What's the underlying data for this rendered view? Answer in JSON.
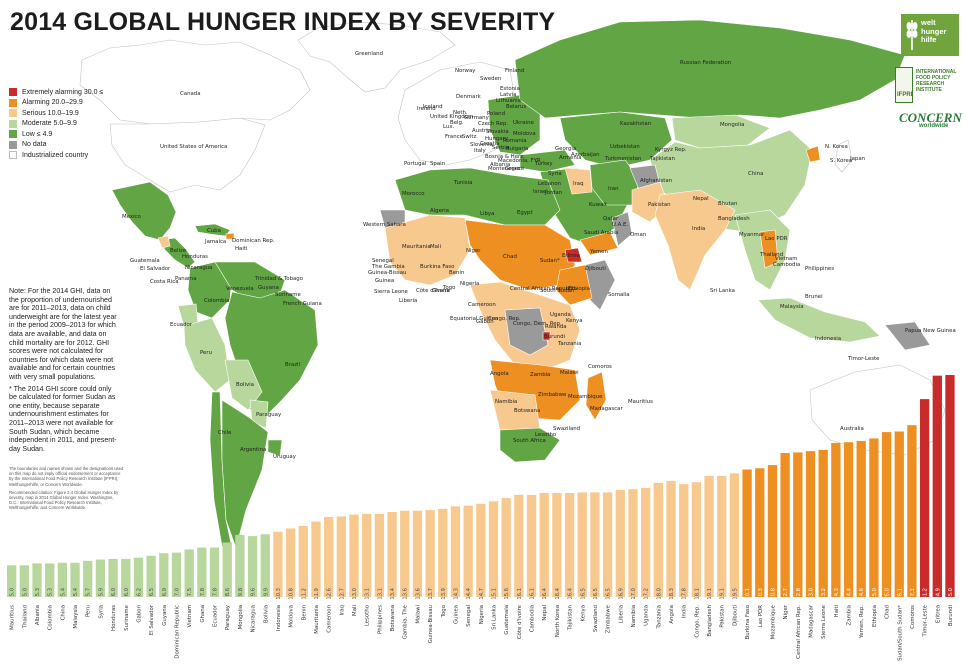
{
  "title": "2014 GLOBAL HUNGER INDEX BY SEVERITY",
  "colors": {
    "extremely_alarming": "#c92a2a",
    "alarming": "#ee8f22",
    "serious": "#f8c98e",
    "moderate": "#b8d79c",
    "low": "#62a544",
    "no_data": "#9a9a9a",
    "industrialized": "#ffffff",
    "ocean": "#ffffff"
  },
  "legend": [
    {
      "label": "Extremely alarming 30.0 ≤",
      "color": "#c92a2a"
    },
    {
      "label": "Alarming 20.0–29.9",
      "color": "#ee8f22"
    },
    {
      "label": "Serious 10.0–19.9",
      "color": "#f8c98e"
    },
    {
      "label": "Moderate 5.0–9.9",
      "color": "#b8d79c"
    },
    {
      "label": "Low ≤ 4.9",
      "color": "#62a544"
    },
    {
      "label": "No data",
      "color": "#9a9a9a"
    },
    {
      "label": "Industrialized country",
      "color": "#ffffff"
    }
  ],
  "note": {
    "p1": "Note: For the 2014 GHI, data on the proportion of undernourished are for 2011–2013, data on child underweight are for the latest year in the period 2009–2013 for which data are available, and data on child mortality are for 2012. GHI scores were not calculated for countries for which data were not available and for certain countries with very small populations.",
    "p2": "* The 2014 GHI score could only be calculated for former Sudan as one entity, because separate undernourishment estimates for 2011–2013 were not available for South Sudan, which became independent in 2011, and present-day Sudan."
  },
  "fine_print": {
    "p1": "The boundaries and names shown and the designations used on this map do not imply official endorsement or acceptance by the International Food Policy Research Institute (IFPRI), Welthungerhilfe, or Concern Worldwide.",
    "p2": "Recommended citation: Figure 2.4 Global Hunger Index by severity, map in 2014 Global Hunger Index. Washington, D.C.: International Food Policy Research Institute, Welthungerhilfe, and Concern Worldwide."
  },
  "logos": {
    "whh": "welt hunger hilfe",
    "ifpri": "INTERNATIONAL FOOD POLICY RESEARCH INSTITUTE",
    "ifpri_short": "IFPRI",
    "concern": "CONCERN",
    "concern_sub": "worldwide"
  },
  "map_labels": [
    {
      "name": "Greenland"
    },
    {
      "name": "Canada"
    },
    {
      "name": "United States of America"
    },
    {
      "name": "Mexico"
    },
    {
      "name": "Cuba"
    },
    {
      "name": "Dominican Rep."
    },
    {
      "name": "Jamaica"
    },
    {
      "name": "Haiti"
    },
    {
      "name": "Belize"
    },
    {
      "name": "Guatemala"
    },
    {
      "name": "Honduras"
    },
    {
      "name": "El Salvador"
    },
    {
      "name": "Nicaragua"
    },
    {
      "name": "Costa Rica"
    },
    {
      "name": "Panama"
    },
    {
      "name": "Trinidad & Tobago"
    },
    {
      "name": "Venezuela"
    },
    {
      "name": "Guyana"
    },
    {
      "name": "Suriname"
    },
    {
      "name": "French Guiana"
    },
    {
      "name": "Colombia"
    },
    {
      "name": "Ecuador"
    },
    {
      "name": "Peru"
    },
    {
      "name": "Brazil"
    },
    {
      "name": "Bolivia"
    },
    {
      "name": "Paraguay"
    },
    {
      "name": "Chile"
    },
    {
      "name": "Argentina"
    },
    {
      "name": "Uruguay"
    },
    {
      "name": "Iceland"
    },
    {
      "name": "Norway"
    },
    {
      "name": "Sweden"
    },
    {
      "name": "Finland"
    },
    {
      "name": "Denmark"
    },
    {
      "name": "United Kingdom"
    },
    {
      "name": "Ireland"
    },
    {
      "name": "Estonia"
    },
    {
      "name": "Latvia"
    },
    {
      "name": "Lithuania"
    },
    {
      "name": "Poland"
    },
    {
      "name": "Germany"
    },
    {
      "name": "Neth."
    },
    {
      "name": "Belg."
    },
    {
      "name": "Lux."
    },
    {
      "name": "France"
    },
    {
      "name": "Switz."
    },
    {
      "name": "Czech Rep."
    },
    {
      "name": "Slovakia"
    },
    {
      "name": "Hungary"
    },
    {
      "name": "Austria"
    },
    {
      "name": "Italy"
    },
    {
      "name": "Belarus"
    },
    {
      "name": "Ukraine"
    },
    {
      "name": "Moldova"
    },
    {
      "name": "Romania"
    },
    {
      "name": "Bulgaria"
    },
    {
      "name": "Serbia"
    },
    {
      "name": "Bosnia & Herz."
    },
    {
      "name": "Croatia"
    },
    {
      "name": "Slovenia"
    },
    {
      "name": "Albania"
    },
    {
      "name": "Macedonia, FYR"
    },
    {
      "name": "Montenegro"
    },
    {
      "name": "Greece"
    },
    {
      "name": "Portugal"
    },
    {
      "name": "Spain"
    },
    {
      "name": "Turkey"
    },
    {
      "name": "Georgia"
    },
    {
      "name": "Armenia"
    },
    {
      "name": "Azerbaijan"
    },
    {
      "name": "Russian Federation"
    },
    {
      "name": "Kazakhstan"
    },
    {
      "name": "Uzbekistan"
    },
    {
      "name": "Turkmenistan"
    },
    {
      "name": "Kyrgyz Rep."
    },
    {
      "name": "Tajikistan"
    },
    {
      "name": "Mongolia"
    },
    {
      "name": "China"
    },
    {
      "name": "N. Korea"
    },
    {
      "name": "S. Korea"
    },
    {
      "name": "Japan"
    },
    {
      "name": "Afghanistan"
    },
    {
      "name": "Pakistan"
    },
    {
      "name": "Iran"
    },
    {
      "name": "Iraq"
    },
    {
      "name": "Syria"
    },
    {
      "name": "Lebanon"
    },
    {
      "name": "Israel"
    },
    {
      "name": "Jordan"
    },
    {
      "name": "Kuwait"
    },
    {
      "name": "Saudi Arabia"
    },
    {
      "name": "Qatar"
    },
    {
      "name": "U.A.E."
    },
    {
      "name": "Oman"
    },
    {
      "name": "Yemen"
    },
    {
      "name": "India"
    },
    {
      "name": "Nepal"
    },
    {
      "name": "Bhutan"
    },
    {
      "name": "Bangladesh"
    },
    {
      "name": "Sri Lanka"
    },
    {
      "name": "Myanmar"
    },
    {
      "name": "Lao PDR"
    },
    {
      "name": "Thailand"
    },
    {
      "name": "Vietnam"
    },
    {
      "name": "Cambodia"
    },
    {
      "name": "Philippines"
    },
    {
      "name": "Malaysia"
    },
    {
      "name": "Brunei"
    },
    {
      "name": "Indonesia"
    },
    {
      "name": "Timor-Leste"
    },
    {
      "name": "Papua New Guinea"
    },
    {
      "name": "Australia"
    },
    {
      "name": "Morocco"
    },
    {
      "name": "Western Sahara"
    },
    {
      "name": "Algeria"
    },
    {
      "name": "Tunisia"
    },
    {
      "name": "Libya"
    },
    {
      "name": "Egypt"
    },
    {
      "name": "Mauritania"
    },
    {
      "name": "Mali"
    },
    {
      "name": "Niger"
    },
    {
      "name": "Chad"
    },
    {
      "name": "Sudan*"
    },
    {
      "name": "Senegal"
    },
    {
      "name": "The Gambia"
    },
    {
      "name": "Guinea-Bissau"
    },
    {
      "name": "Guinea"
    },
    {
      "name": "Sierra Leone"
    },
    {
      "name": "Liberia"
    },
    {
      "name": "Côte d'Ivoire"
    },
    {
      "name": "Burkina Faso"
    },
    {
      "name": "Ghana"
    },
    {
      "name": "Togo"
    },
    {
      "name": "Benin"
    },
    {
      "name": "Nigeria"
    },
    {
      "name": "Cameroon"
    },
    {
      "name": "Central African Republic"
    },
    {
      "name": "South Sudan*"
    },
    {
      "name": "Ethiopia"
    },
    {
      "name": "Eritrea"
    },
    {
      "name": "Djibouti"
    },
    {
      "name": "Somalia"
    },
    {
      "name": "Equatorial Guinea"
    },
    {
      "name": "Gabon"
    },
    {
      "name": "Congo, Rep."
    },
    {
      "name": "Congo, Dem. Rep."
    },
    {
      "name": "Uganda"
    },
    {
      "name": "Kenya"
    },
    {
      "name": "Rwanda"
    },
    {
      "name": "Burundi"
    },
    {
      "name": "Tanzania"
    },
    {
      "name": "Angola"
    },
    {
      "name": "Zambia"
    },
    {
      "name": "Malawi"
    },
    {
      "name": "Mozambique"
    },
    {
      "name": "Zimbabwe"
    },
    {
      "name": "Namibia"
    },
    {
      "name": "Botswana"
    },
    {
      "name": "South Africa"
    },
    {
      "name": "Swaziland"
    },
    {
      "name": "Lesotho"
    },
    {
      "name": "Madagascar"
    },
    {
      "name": "Comoros"
    },
    {
      "name": "Mauritius"
    }
  ],
  "chart_data": {
    "type": "bar",
    "title": "",
    "xlabel": "",
    "ylabel": "",
    "ylim": [
      0,
      38
    ],
    "categories": [
      "Mauritius",
      "Thailand",
      "Albania",
      "Colombia",
      "China",
      "Malaysia",
      "Peru",
      "Syria",
      "Honduras",
      "Suriname",
      "Gabon",
      "El Salvador",
      "Guyana",
      "Dominican Republic",
      "Vietnam",
      "Ghana",
      "Ecuador",
      "Paraguay",
      "Mongolia",
      "Nicaragua",
      "Bolivia",
      "Indonesia",
      "Moldova",
      "Benin",
      "Mauritania",
      "Cameroon",
      "Iraq",
      "Mali",
      "Lesotho",
      "Philippines",
      "Botswana",
      "Gambia, The",
      "Malawi",
      "Guinea-Bissau",
      "Togo",
      "Guinea",
      "Senegal",
      "Nigeria",
      "Sri Lanka",
      "Guatemala",
      "Côte d'Ivoire",
      "Cambodia",
      "Nepal",
      "North Korea",
      "Tajikistan",
      "Kenya",
      "Swaziland",
      "Zimbabwe",
      "Liberia",
      "Namibia",
      "Uganda",
      "Tanzania",
      "Angola",
      "India",
      "Congo, Rep.",
      "Bangladesh",
      "Pakistan",
      "Djibouti",
      "Burkina Faso",
      "Lao PDR",
      "Mozambique",
      "Niger",
      "Central African Rep.",
      "Madagascar",
      "Sierra Leone",
      "Haiti",
      "Zambia",
      "Yemen, Rep.",
      "Ethiopia",
      "Chad",
      "Sudan/South Sudan*",
      "Comoros",
      "Timor-Leste",
      "Eritrea",
      "Burundi"
    ],
    "values": [
      5.0,
      5.0,
      5.3,
      5.3,
      5.4,
      5.4,
      5.7,
      5.9,
      6.0,
      6.0,
      6.2,
      6.5,
      6.9,
      7.0,
      7.5,
      7.8,
      7.8,
      8.6,
      9.8,
      9.6,
      9.9,
      10.3,
      10.8,
      11.2,
      11.9,
      12.6,
      12.7,
      13.0,
      13.1,
      13.1,
      13.4,
      13.6,
      13.6,
      13.7,
      13.9,
      14.3,
      14.4,
      14.7,
      15.1,
      15.6,
      16.1,
      16.1,
      16.4,
      16.4,
      16.4,
      16.5,
      16.5,
      16.5,
      16.9,
      17.0,
      17.2,
      18.0,
      18.3,
      17.8,
      18.1,
      19.1,
      19.1,
      19.5,
      20.1,
      20.3,
      20.8,
      22.7,
      22.8,
      23.0,
      23.2,
      24.3,
      24.4,
      24.6,
      25.0,
      26.0,
      26.1,
      27.1,
      31.2,
      34.9,
      35.0
    ],
    "value_labels": [
      "5.0",
      "5.0",
      "5.3",
      "5.3",
      "5.4",
      "5.4",
      "5.7",
      "5.9",
      "6.0",
      "6.0",
      "6.2",
      "6.5",
      "6.9",
      "7.0",
      "7.5",
      "7.8",
      "7.8",
      "8.6",
      "9.8",
      "9.6",
      "9.9",
      "10.3",
      "10.8",
      "11.2",
      "11.9",
      "12.6",
      "12.7",
      "13.0",
      "13.1",
      "13.1",
      "13.4",
      "13.6",
      "13.6",
      "13.7",
      "13.9",
      "14.3",
      "14.4",
      "14.7",
      "15.1",
      "15.6",
      "16.1",
      "16.1",
      "16.4",
      "16.4",
      "16.4",
      "16.5",
      "16.5",
      "16.5",
      "16.9",
      "17.0",
      "17.2",
      "18.0",
      "18.3",
      "17.8",
      "18.1",
      "19.1",
      "19.1",
      "19.5",
      "20.1",
      "20.3",
      "20.8",
      "22.7",
      "22.8",
      "23.0",
      "23.2",
      "24.3",
      "24.4",
      "24.6",
      "25.0",
      "26.0",
      "26.1",
      "27.1",
      "31.2",
      "34.9",
      "35.0"
    ]
  }
}
